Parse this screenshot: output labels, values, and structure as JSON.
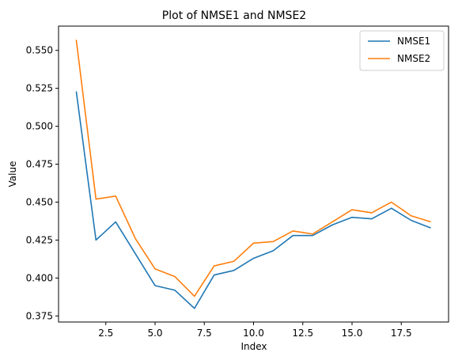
{
  "chart_data": {
    "type": "line",
    "title": "Plot of NMSE1 and NMSE2",
    "xlabel": "Index",
    "ylabel": "Value",
    "x": [
      1,
      2,
      3,
      4,
      5,
      6,
      7,
      8,
      9,
      10,
      11,
      12,
      13,
      14,
      15,
      16,
      17,
      18,
      19
    ],
    "series": [
      {
        "name": "NMSE1",
        "color": "#1f77b4",
        "values": [
          0.523,
          0.425,
          0.437,
          0.416,
          0.395,
          0.392,
          0.38,
          0.402,
          0.405,
          0.413,
          0.418,
          0.428,
          0.428,
          0.435,
          0.44,
          0.439,
          0.446,
          0.438,
          0.433
        ]
      },
      {
        "name": "NMSE2",
        "color": "#ff7f0e",
        "values": [
          0.557,
          0.452,
          0.454,
          0.426,
          0.406,
          0.401,
          0.388,
          0.408,
          0.411,
          0.423,
          0.424,
          0.431,
          0.429,
          0.437,
          0.445,
          0.443,
          0.45,
          0.441,
          0.437
        ]
      }
    ],
    "xlim": [
      0.1,
      19.9
    ],
    "ylim": [
      0.371,
      0.566
    ],
    "xticks": [
      2.5,
      5.0,
      7.5,
      10.0,
      12.5,
      15.0,
      17.5
    ],
    "xtick_labels": [
      "2.5",
      "5.0",
      "7.5",
      "10.0",
      "12.5",
      "15.0",
      "17.5"
    ],
    "yticks": [
      0.375,
      0.4,
      0.425,
      0.45,
      0.475,
      0.5,
      0.525,
      0.55
    ],
    "ytick_labels": [
      "0.375",
      "0.400",
      "0.425",
      "0.450",
      "0.475",
      "0.500",
      "0.525",
      "0.550"
    ],
    "grid": false,
    "legend_position": "upper right"
  }
}
